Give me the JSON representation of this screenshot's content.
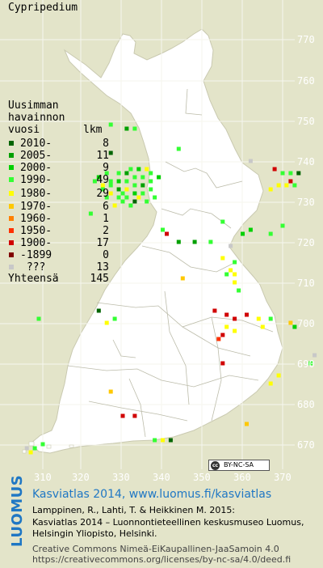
{
  "map": {
    "title": "Cypripedium",
    "legend": {
      "title_lines": [
        "Uusimman",
        "havainnon",
        "vuosi"
      ],
      "count_header": "lkm",
      "items": [
        {
          "label": "2010-",
          "count": "8",
          "color": "#006400"
        },
        {
          "label": "2005-",
          "count": "11",
          "color": "#00a000"
        },
        {
          "label": "2000-",
          "count": "9",
          "color": "#00d000"
        },
        {
          "label": "1990-",
          "count": "49",
          "color": "#33ff33"
        },
        {
          "label": "1980-",
          "count": "29",
          "color": "#ffff00"
        },
        {
          "label": "1970-",
          "count": "6",
          "color": "#ffc800"
        },
        {
          "label": "1960-",
          "count": "1",
          "color": "#ff8000"
        },
        {
          "label": "1950-",
          "count": "2",
          "color": "#ff3000"
        },
        {
          "label": "1900-",
          "count": "17",
          "color": "#d00000"
        },
        {
          "label": "-1899",
          "count": "0",
          "color": "#800000"
        },
        {
          "label": " ???",
          "count": "13",
          "color": "#c8c8c8"
        }
      ],
      "total_label": "Yhteensä",
      "total_count": "145"
    },
    "y_ticks": [
      "770",
      "760",
      "750",
      "740",
      "730",
      "720",
      "710",
      "700",
      "690",
      "680",
      "670"
    ],
    "x_ticks": [
      "310",
      "320",
      "330",
      "340",
      "350",
      "360",
      "370"
    ],
    "land_color": "#ffffff",
    "sea_color": "#e3e4c9",
    "points": [
      {
        "e": 327,
        "n": 749,
        "p": "1990-"
      },
      {
        "e": 331,
        "n": 748,
        "p": "2005-"
      },
      {
        "e": 333,
        "n": 748,
        "p": "1990-"
      },
      {
        "e": 344,
        "n": 743,
        "p": "1990-"
      },
      {
        "e": 327,
        "n": 742,
        "p": "2010-"
      },
      {
        "e": 332,
        "n": 738,
        "p": "1990-"
      },
      {
        "e": 334,
        "n": 738,
        "p": "2000-"
      },
      {
        "e": 336,
        "n": 738,
        "p": "1980-"
      },
      {
        "e": 337,
        "n": 737,
        "p": "1990-"
      },
      {
        "e": 329,
        "n": 737,
        "p": "1990-"
      },
      {
        "e": 331,
        "n": 737,
        "p": "2005-"
      },
      {
        "e": 333,
        "n": 736,
        "p": "1990-"
      },
      {
        "e": 335,
        "n": 736,
        "p": "1990-"
      },
      {
        "e": 339,
        "n": 736,
        "p": "2000-"
      },
      {
        "e": 329,
        "n": 735,
        "p": "2000-"
      },
      {
        "e": 331,
        "n": 735,
        "p": "1990-"
      },
      {
        "e": 333,
        "n": 734,
        "p": "1990-"
      },
      {
        "e": 335,
        "n": 734,
        "p": "2005-"
      },
      {
        "e": 337,
        "n": 735,
        "p": "1990-"
      },
      {
        "e": 327,
        "n": 734,
        "p": "1990-"
      },
      {
        "e": 329,
        "n": 733,
        "p": "2005-"
      },
      {
        "e": 331,
        "n": 733,
        "p": "1980-"
      },
      {
        "e": 333,
        "n": 732,
        "p": "2000-"
      },
      {
        "e": 335,
        "n": 732,
        "p": "1990-"
      },
      {
        "e": 337,
        "n": 733,
        "p": "1990-"
      },
      {
        "e": 327,
        "n": 732,
        "p": "1980-"
      },
      {
        "e": 329,
        "n": 731,
        "p": "1990-"
      },
      {
        "e": 331,
        "n": 731,
        "p": "1990-"
      },
      {
        "e": 333,
        "n": 730,
        "p": "2010-"
      },
      {
        "e": 328,
        "n": 729,
        "p": "1980-"
      },
      {
        "e": 326,
        "n": 731,
        "p": "1990-"
      },
      {
        "e": 334,
        "n": 731,
        "p": "1980-"
      },
      {
        "e": 325,
        "n": 733,
        "p": "1990-"
      },
      {
        "e": 323,
        "n": 735,
        "p": "1990-"
      },
      {
        "e": 324,
        "n": 736,
        "p": "2000-"
      },
      {
        "e": 326,
        "n": 737,
        "p": "1990-"
      },
      {
        "e": 325,
        "n": 734,
        "p": "1980-"
      },
      {
        "e": 330,
        "n": 730,
        "p": "1990-"
      },
      {
        "e": 332,
        "n": 729,
        "p": "1990-"
      },
      {
        "e": 336,
        "n": 730,
        "p": "1990-"
      },
      {
        "e": 327,
        "n": 735,
        "p": "1990-"
      },
      {
        "e": 330,
        "n": 732,
        "p": "1990-"
      },
      {
        "e": 338,
        "n": 731,
        "p": "1990-"
      },
      {
        "e": 362,
        "n": 740,
        "p": "???"
      },
      {
        "e": 368,
        "n": 738,
        "p": "1900-"
      },
      {
        "e": 370,
        "n": 737,
        "p": "1990-"
      },
      {
        "e": 372,
        "n": 737,
        "p": "1990-"
      },
      {
        "e": 374,
        "n": 737,
        "p": "2010-"
      },
      {
        "e": 369,
        "n": 734,
        "p": "1980-"
      },
      {
        "e": 371,
        "n": 734,
        "p": "1980-"
      },
      {
        "e": 373,
        "n": 734,
        "p": "1990-"
      },
      {
        "e": 367,
        "n": 733,
        "p": "1980-"
      },
      {
        "e": 372,
        "n": 735,
        "p": "1900-"
      },
      {
        "e": 322,
        "n": 727,
        "p": "1990-"
      },
      {
        "e": 340,
        "n": 723,
        "p": "1990-"
      },
      {
        "e": 355,
        "n": 725,
        "p": "1990-"
      },
      {
        "e": 341,
        "n": 722,
        "p": "1900-"
      },
      {
        "e": 344,
        "n": 720,
        "p": "2005-"
      },
      {
        "e": 348,
        "n": 720,
        "p": "2005-"
      },
      {
        "e": 352,
        "n": 720,
        "p": "1990-"
      },
      {
        "e": 360,
        "n": 722,
        "p": "2000-"
      },
      {
        "e": 362,
        "n": 723,
        "p": "2000-"
      },
      {
        "e": 370,
        "n": 724,
        "p": "1990-"
      },
      {
        "e": 367,
        "n": 722,
        "p": "1990-"
      },
      {
        "e": 357,
        "n": 719,
        "p": "???"
      },
      {
        "e": 355,
        "n": 716,
        "p": "1980-"
      },
      {
        "e": 358,
        "n": 715,
        "p": "1990-"
      },
      {
        "e": 357,
        "n": 713,
        "p": "1980-"
      },
      {
        "e": 358,
        "n": 712,
        "p": "1980-"
      },
      {
        "e": 356,
        "n": 712,
        "p": "1990-"
      },
      {
        "e": 358,
        "n": 710,
        "p": "1980-"
      },
      {
        "e": 359,
        "n": 708,
        "p": "1990-"
      },
      {
        "e": 345,
        "n": 711,
        "p": "1970-"
      },
      {
        "e": 309,
        "n": 701,
        "p": "1990-"
      },
      {
        "e": 324,
        "n": 703,
        "p": "2010-"
      },
      {
        "e": 326,
        "n": 700,
        "p": "1980-"
      },
      {
        "e": 328,
        "n": 701,
        "p": "1990-"
      },
      {
        "e": 353,
        "n": 703,
        "p": "1900-"
      },
      {
        "e": 356,
        "n": 702,
        "p": "1900-"
      },
      {
        "e": 358,
        "n": 701,
        "p": "1900-"
      },
      {
        "e": 361,
        "n": 702,
        "p": "1900-"
      },
      {
        "e": 356,
        "n": 699,
        "p": "1980-"
      },
      {
        "e": 354,
        "n": 696,
        "p": "1950-"
      },
      {
        "e": 355,
        "n": 697,
        "p": "1900-"
      },
      {
        "e": 358,
        "n": 698,
        "p": "1980-"
      },
      {
        "e": 364,
        "n": 701,
        "p": "1980-"
      },
      {
        "e": 365,
        "n": 699,
        "p": "1980-"
      },
      {
        "e": 367,
        "n": 701,
        "p": "1990-"
      },
      {
        "e": 372,
        "n": 700,
        "p": "1970-"
      },
      {
        "e": 373,
        "n": 699,
        "p": "2000-"
      },
      {
        "e": 355,
        "n": 690,
        "p": "1900-"
      },
      {
        "e": 378,
        "n": 692,
        "p": "???"
      },
      {
        "e": 377,
        "n": 690,
        "p": "1990-"
      },
      {
        "e": 369,
        "n": 687,
        "p": "1980-"
      },
      {
        "e": 367,
        "n": 685,
        "p": "1980-"
      },
      {
        "e": 327,
        "n": 683,
        "p": "1970-"
      },
      {
        "e": 330,
        "n": 677,
        "p": "1900-"
      },
      {
        "e": 333,
        "n": 677,
        "p": "1900-"
      },
      {
        "e": 361,
        "n": 675,
        "p": "1970-"
      },
      {
        "e": 338,
        "n": 671,
        "p": "1990-"
      },
      {
        "e": 340,
        "n": 671,
        "p": "1980-"
      },
      {
        "e": 342,
        "n": 671,
        "p": "2010-"
      },
      {
        "e": 306,
        "n": 669,
        "p": "???"
      },
      {
        "e": 308,
        "n": 669,
        "p": "1990-"
      },
      {
        "e": 310,
        "n": 670,
        "p": "1990-"
      },
      {
        "e": 307,
        "n": 668,
        "p": "1980-"
      }
    ]
  },
  "credits": {
    "logo_text": "LUOMUS",
    "heading": "Kasviatlas 2014, www.luomus.fi/kasviatlas",
    "authors": "Lamppinen, R., Lahti, T. & Heikkinen M. 2015:",
    "publisher1": "Kasviatlas 2014 – Luonnontieteellinen keskusmuseo Luomus,",
    "publisher2": "Helsingin Yliopisto, Helsinki.",
    "license1": "Creative Commons Nimeä-EiKaupallinen-JaaSamoin 4.0",
    "license2": "https://creativecommons.org/licenses/by-nc-sa/4.0/deed.fi",
    "cc_badge": "BY-NC-SA",
    "cc_icon": "cc"
  }
}
